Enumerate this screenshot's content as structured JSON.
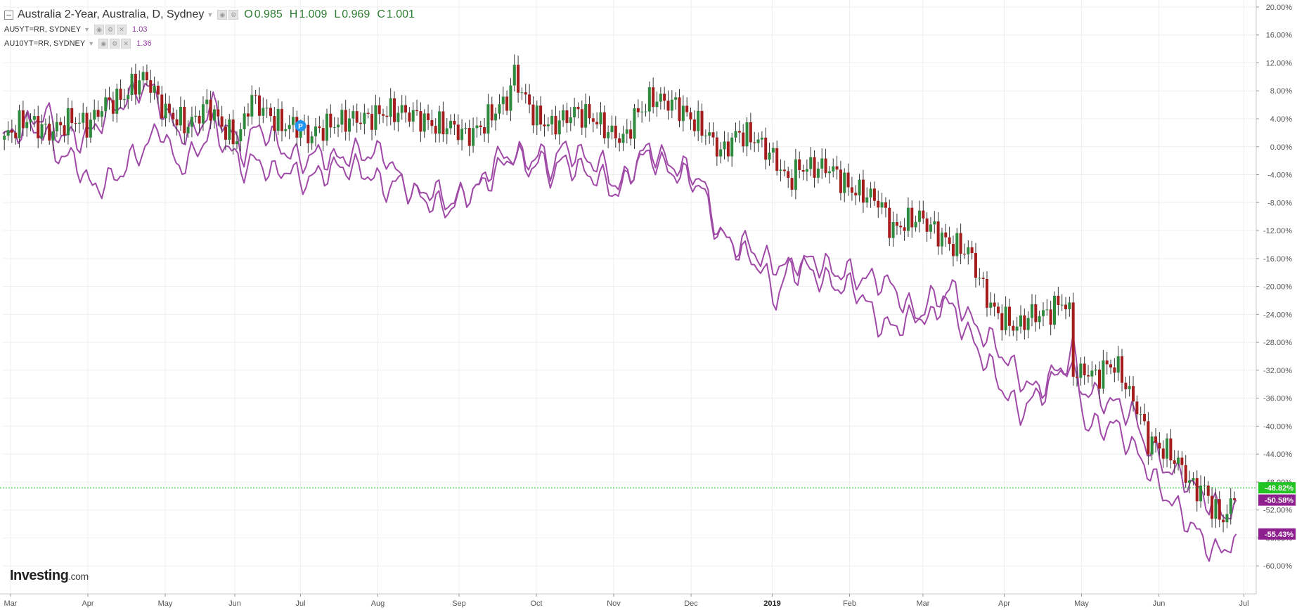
{
  "legend": {
    "main": {
      "title": "Australia 2-Year, Australia, D, Sydney",
      "ohlc": [
        {
          "key": "O",
          "value": "0.985"
        },
        {
          "key": "H",
          "value": "1.009"
        },
        {
          "key": "L",
          "value": "0.969"
        },
        {
          "key": "C",
          "value": "1.001"
        }
      ]
    },
    "series": [
      {
        "label": "AU5YT=RR, SYDNEY",
        "value": "1.03"
      },
      {
        "label": "AU10YT=RR, SYDNEY",
        "value": "1.36"
      }
    ]
  },
  "logo": {
    "main": "Investing",
    "suffix": ".com"
  },
  "colors": {
    "up": "#2e8b3e",
    "down": "#a51c1c",
    "compare": "#a04aa8",
    "current_line": "#22c322",
    "label_green": "#22c322",
    "label_purple": "#8e1f8e",
    "grid": "#efefef",
    "axis_text": "#555555"
  },
  "chart_data": {
    "type": "candlestick",
    "y_axis": {
      "min": -64,
      "max": 21,
      "unit": "%",
      "ticks": [
        20,
        16,
        12,
        8,
        4,
        0,
        -4,
        -8,
        -12,
        -16,
        -20,
        -24,
        -28,
        -32,
        -36,
        -40,
        -44,
        -48,
        -52,
        -56,
        -60
      ],
      "tick_labels": [
        "20.00%",
        "16.00%",
        "12.00%",
        "8.00%",
        "4.00%",
        "0.00%",
        "-4.00%",
        "-8.00%",
        "-12.00%",
        "-16.00%",
        "-20.00%",
        "-24.00%",
        "-28.00%",
        "-32.00%",
        "-36.00%",
        "-40.00%",
        "-44.00%",
        "-48.00%",
        "-52.00%",
        "-56.00%",
        "-60.00%"
      ]
    },
    "x_axis": {
      "range": [
        0,
        16.2
      ],
      "labels": [
        {
          "text": "Mar",
          "t": 0.1
        },
        {
          "text": "Apr",
          "t": 1.1
        },
        {
          "text": "May",
          "t": 2.1
        },
        {
          "text": "Jun",
          "t": 3.0
        },
        {
          "text": "Jul",
          "t": 3.85
        },
        {
          "text": "Aug",
          "t": 4.85
        },
        {
          "text": "Sep",
          "t": 5.9
        },
        {
          "text": "Oct",
          "t": 6.9
        },
        {
          "text": "Nov",
          "t": 7.9
        },
        {
          "text": "Dec",
          "t": 8.9
        },
        {
          "text": "2019",
          "t": 9.95,
          "bold": true
        },
        {
          "text": "Feb",
          "t": 10.95
        },
        {
          "text": "Mar",
          "t": 11.9
        },
        {
          "text": "Apr",
          "t": 12.95
        },
        {
          "text": "May",
          "t": 13.95
        },
        {
          "text": "Jun",
          "t": 14.95
        },
        {
          "text": "Jul",
          "t": 16.05
        }
      ]
    },
    "series": [
      {
        "name": "Australia 2-Year",
        "type": "candle",
        "points": [
          [
            0,
            1
          ],
          [
            0.3,
            4
          ],
          [
            0.6,
            2
          ],
          [
            0.9,
            4
          ],
          [
            1.1,
            3
          ],
          [
            1.3,
            6
          ],
          [
            1.55,
            7
          ],
          [
            1.7,
            9
          ],
          [
            1.85,
            10
          ],
          [
            2.1,
            5
          ],
          [
            2.4,
            3
          ],
          [
            2.65,
            6
          ],
          [
            2.9,
            2
          ],
          [
            3.05,
            1
          ],
          [
            3.2,
            7
          ],
          [
            3.4,
            5
          ],
          [
            3.6,
            3
          ],
          [
            3.8,
            3
          ],
          [
            3.95,
            1.5
          ],
          [
            4.2,
            3
          ],
          [
            4.5,
            4
          ],
          [
            4.7,
            4
          ],
          [
            4.95,
            5
          ],
          [
            5.2,
            5
          ],
          [
            5.4,
            4
          ],
          [
            5.6,
            3
          ],
          [
            5.8,
            3
          ],
          [
            6.0,
            1.5
          ],
          [
            6.2,
            3
          ],
          [
            6.35,
            5
          ],
          [
            6.55,
            7
          ],
          [
            6.6,
            11
          ],
          [
            6.7,
            8
          ],
          [
            6.9,
            4
          ],
          [
            7.1,
            3
          ],
          [
            7.4,
            5
          ],
          [
            7.65,
            4
          ],
          [
            7.85,
            2
          ],
          [
            8.05,
            1
          ],
          [
            8.15,
            4
          ],
          [
            8.4,
            7
          ],
          [
            8.7,
            6
          ],
          [
            8.9,
            4
          ],
          [
            9.1,
            2
          ],
          [
            9.3,
            -1
          ],
          [
            9.5,
            2
          ],
          [
            9.75,
            1
          ],
          [
            10.0,
            -2
          ],
          [
            10.15,
            -5
          ],
          [
            10.3,
            -3
          ],
          [
            10.5,
            -3
          ],
          [
            10.7,
            -3
          ],
          [
            10.95,
            -6
          ],
          [
            11.2,
            -7
          ],
          [
            11.35,
            -8
          ],
          [
            11.5,
            -12
          ],
          [
            11.65,
            -11
          ],
          [
            11.85,
            -10
          ],
          [
            12.05,
            -12
          ],
          [
            12.25,
            -14
          ],
          [
            12.5,
            -15
          ],
          [
            12.7,
            -21
          ],
          [
            12.85,
            -24
          ],
          [
            13.0,
            -25
          ],
          [
            13.1,
            -26
          ],
          [
            13.3,
            -24
          ],
          [
            13.5,
            -24
          ],
          [
            13.7,
            -22
          ],
          [
            13.8,
            -24
          ],
          [
            13.85,
            -33
          ],
          [
            14.0,
            -32
          ],
          [
            14.15,
            -33
          ],
          [
            14.3,
            -31
          ],
          [
            14.45,
            -32
          ],
          [
            14.55,
            -35
          ],
          [
            14.7,
            -38
          ],
          [
            14.8,
            -42
          ],
          [
            14.95,
            -43
          ],
          [
            15.1,
            -44
          ],
          [
            15.25,
            -46
          ],
          [
            15.4,
            -49
          ],
          [
            15.55,
            -49
          ],
          [
            15.65,
            -52
          ],
          [
            15.75,
            -53
          ],
          [
            15.85,
            -53
          ],
          [
            15.9,
            -50
          ],
          [
            15.95,
            -48.82
          ]
        ]
      },
      {
        "name": "AU5YT=RR, SYDNEY",
        "type": "line",
        "points": [
          [
            0,
            1
          ],
          [
            0.3,
            3
          ],
          [
            0.55,
            5
          ],
          [
            0.7,
            2
          ],
          [
            0.95,
            1
          ],
          [
            1.15,
            2
          ],
          [
            1.35,
            5
          ],
          [
            1.5,
            6
          ],
          [
            1.65,
            7
          ],
          [
            1.85,
            9
          ],
          [
            2.05,
            6
          ],
          [
            2.25,
            2
          ],
          [
            2.5,
            2
          ],
          [
            2.7,
            6
          ],
          [
            2.9,
            3
          ],
          [
            3.1,
            -1
          ],
          [
            3.3,
            3
          ],
          [
            3.5,
            1
          ],
          [
            3.7,
            -1
          ],
          [
            3.85,
            -2
          ],
          [
            4.1,
            -1
          ],
          [
            4.3,
            -2
          ],
          [
            4.5,
            -1
          ],
          [
            4.75,
            -1
          ],
          [
            4.95,
            -1
          ],
          [
            5.15,
            -5
          ],
          [
            5.35,
            -7
          ],
          [
            5.55,
            -6
          ],
          [
            5.75,
            -8
          ],
          [
            5.95,
            -7
          ],
          [
            6.15,
            -6
          ],
          [
            6.35,
            -4
          ],
          [
            6.6,
            -1
          ],
          [
            6.8,
            -2
          ],
          [
            6.95,
            -1
          ],
          [
            7.1,
            -3
          ],
          [
            7.25,
            0
          ],
          [
            7.4,
            -1
          ],
          [
            7.6,
            -2
          ],
          [
            7.8,
            -3
          ],
          [
            7.95,
            -6
          ],
          [
            8.15,
            -3
          ],
          [
            8.35,
            0
          ],
          [
            8.55,
            -2
          ],
          [
            8.75,
            -3
          ],
          [
            8.95,
            -4
          ],
          [
            9.05,
            -5
          ],
          [
            9.15,
            -9
          ],
          [
            9.3,
            -13
          ],
          [
            9.45,
            -14
          ],
          [
            9.65,
            -14
          ],
          [
            9.8,
            -16
          ],
          [
            10.0,
            -17
          ],
          [
            10.1,
            -17
          ],
          [
            10.25,
            -18
          ],
          [
            10.45,
            -16
          ],
          [
            10.6,
            -17
          ],
          [
            10.8,
            -18
          ],
          [
            10.95,
            -18
          ],
          [
            11.1,
            -19
          ],
          [
            11.3,
            -19
          ],
          [
            11.5,
            -20
          ],
          [
            11.7,
            -23
          ],
          [
            11.85,
            -24
          ],
          [
            12.0,
            -25
          ],
          [
            12.15,
            -22
          ],
          [
            12.3,
            -20
          ],
          [
            12.45,
            -24
          ],
          [
            12.6,
            -26
          ],
          [
            12.8,
            -28
          ],
          [
            12.95,
            -30
          ],
          [
            13.15,
            -33
          ],
          [
            13.35,
            -35
          ],
          [
            13.55,
            -33
          ],
          [
            13.75,
            -31
          ],
          [
            13.85,
            -33
          ],
          [
            14.0,
            -35
          ],
          [
            14.2,
            -36
          ],
          [
            14.4,
            -37
          ],
          [
            14.6,
            -38
          ],
          [
            14.75,
            -42
          ],
          [
            14.9,
            -44
          ],
          [
            15.05,
            -46
          ],
          [
            15.2,
            -47
          ],
          [
            15.35,
            -48
          ],
          [
            15.5,
            -50
          ],
          [
            15.65,
            -51
          ],
          [
            15.8,
            -53
          ],
          [
            15.95,
            -50.58
          ]
        ]
      },
      {
        "name": "AU10YT=RR, SYDNEY",
        "type": "line",
        "points": [
          [
            0,
            1
          ],
          [
            0.3,
            3
          ],
          [
            0.55,
            2
          ],
          [
            0.7,
            -1
          ],
          [
            0.95,
            -2
          ],
          [
            1.15,
            -6
          ],
          [
            1.35,
            -5
          ],
          [
            1.5,
            -4
          ],
          [
            1.65,
            -2
          ],
          [
            1.85,
            0
          ],
          [
            2.05,
            3
          ],
          [
            2.25,
            -3
          ],
          [
            2.5,
            -1
          ],
          [
            2.7,
            3
          ],
          [
            2.9,
            0
          ],
          [
            3.1,
            -3
          ],
          [
            3.3,
            -2
          ],
          [
            3.5,
            -4
          ],
          [
            3.7,
            -3
          ],
          [
            3.85,
            -5
          ],
          [
            4.1,
            -4
          ],
          [
            4.3,
            -3
          ],
          [
            4.5,
            -3
          ],
          [
            4.75,
            -4
          ],
          [
            4.95,
            -6
          ],
          [
            5.15,
            -5
          ],
          [
            5.35,
            -7
          ],
          [
            5.55,
            -8
          ],
          [
            5.75,
            -9
          ],
          [
            5.95,
            -7
          ],
          [
            6.15,
            -6
          ],
          [
            6.35,
            -2
          ],
          [
            6.6,
            -1
          ],
          [
            6.8,
            -3
          ],
          [
            6.95,
            -2
          ],
          [
            7.1,
            -4
          ],
          [
            7.25,
            -2
          ],
          [
            7.4,
            -3
          ],
          [
            7.6,
            -4
          ],
          [
            7.8,
            -5
          ],
          [
            7.95,
            -7
          ],
          [
            8.15,
            -3
          ],
          [
            8.35,
            -1
          ],
          [
            8.55,
            -3
          ],
          [
            8.75,
            -4
          ],
          [
            8.95,
            -5
          ],
          [
            9.05,
            -6
          ],
          [
            9.15,
            -10
          ],
          [
            9.3,
            -13
          ],
          [
            9.45,
            -14
          ],
          [
            9.65,
            -16
          ],
          [
            9.8,
            -17
          ],
          [
            10.0,
            -22
          ],
          [
            10.1,
            -19
          ],
          [
            10.25,
            -16
          ],
          [
            10.45,
            -18
          ],
          [
            10.6,
            -19
          ],
          [
            10.8,
            -20
          ],
          [
            10.95,
            -20
          ],
          [
            11.1,
            -21
          ],
          [
            11.3,
            -25
          ],
          [
            11.5,
            -26
          ],
          [
            11.7,
            -25
          ],
          [
            11.85,
            -24
          ],
          [
            12.0,
            -22
          ],
          [
            12.15,
            -21
          ],
          [
            12.3,
            -24
          ],
          [
            12.45,
            -26
          ],
          [
            12.6,
            -29
          ],
          [
            12.8,
            -32
          ],
          [
            12.95,
            -35
          ],
          [
            13.15,
            -38
          ],
          [
            13.35,
            -36
          ],
          [
            13.55,
            -34
          ],
          [
            13.75,
            -31
          ],
          [
            13.85,
            -29
          ],
          [
            14.0,
            -40
          ],
          [
            14.2,
            -40
          ],
          [
            14.4,
            -40
          ],
          [
            14.6,
            -43
          ],
          [
            14.75,
            -45
          ],
          [
            14.9,
            -48
          ],
          [
            15.05,
            -50
          ],
          [
            15.2,
            -52
          ],
          [
            15.35,
            -54
          ],
          [
            15.5,
            -56
          ],
          [
            15.65,
            -58
          ],
          [
            15.75,
            -58
          ],
          [
            15.85,
            -57
          ],
          [
            15.95,
            -55.43
          ]
        ]
      }
    ],
    "current_value_labels": [
      {
        "text": "-48.82%",
        "value": -48.82,
        "style": "green"
      },
      {
        "text": "-50.58%",
        "value": -50.58,
        "style": "purple"
      },
      {
        "text": "-55.43%",
        "value": -55.43,
        "style": "purple"
      }
    ],
    "current_value_line": -48.82,
    "marker": {
      "text": "P",
      "t": 3.85,
      "value": 3
    }
  }
}
